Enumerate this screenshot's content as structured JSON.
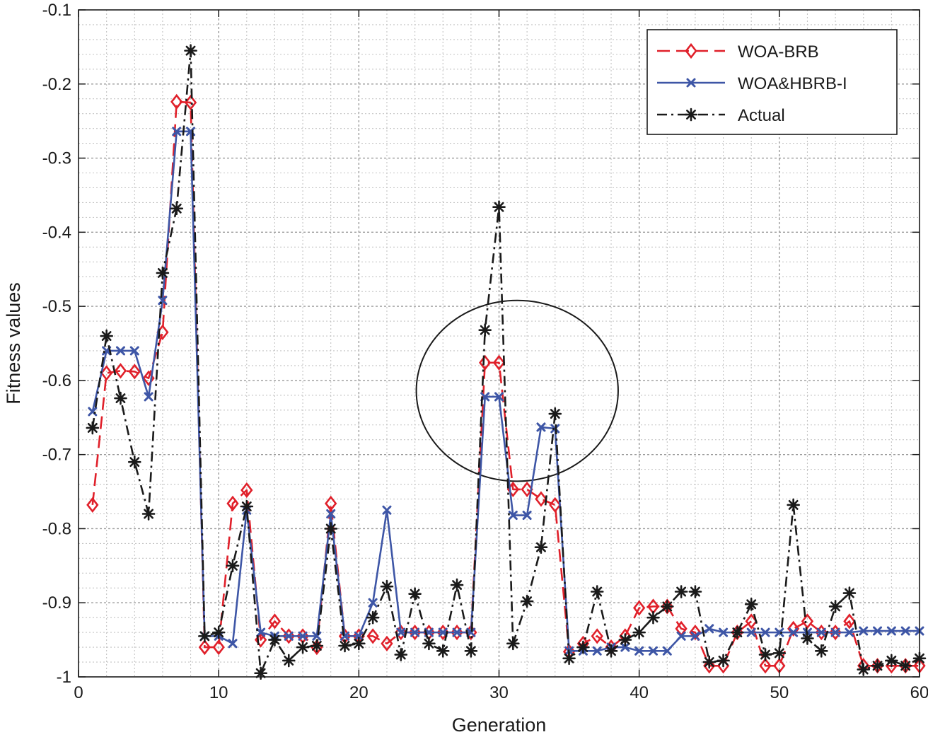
{
  "chart_data": {
    "type": "line",
    "title": "",
    "xlabel": "Generation",
    "ylabel": "Fitness values",
    "xlim": [
      0,
      60
    ],
    "ylim": [
      -1,
      -0.1
    ],
    "xticks": [
      0,
      10,
      20,
      30,
      40,
      50,
      60
    ],
    "xtick_labels": [
      "0",
      "10",
      "20",
      "30",
      "40",
      "50",
      "60"
    ],
    "yticks": [
      -1,
      -0.9,
      -0.8,
      -0.7,
      -0.6,
      -0.5,
      -0.4,
      -0.3,
      -0.2,
      -0.1
    ],
    "ytick_labels": [
      "-1",
      "-0.9",
      "-0.8",
      "-0.7",
      "-0.6",
      "-0.5",
      "-0.4",
      "-0.3",
      "-0.2",
      "-0.1"
    ],
    "grid": true,
    "minor_grid": true,
    "legend_position": "top-right",
    "x": [
      1,
      2,
      3,
      4,
      5,
      6,
      7,
      8,
      9,
      10,
      11,
      12,
      13,
      14,
      15,
      16,
      17,
      18,
      19,
      20,
      21,
      22,
      23,
      24,
      25,
      26,
      27,
      28,
      29,
      30,
      31,
      32,
      33,
      34,
      35,
      36,
      37,
      38,
      39,
      40,
      41,
      42,
      43,
      44,
      45,
      46,
      47,
      48,
      49,
      50,
      51,
      52,
      53,
      54,
      55,
      56,
      57,
      58,
      59,
      60
    ],
    "series": [
      {
        "name": "WOA-BRB",
        "color": "#e0202a",
        "line_style": "dashed",
        "marker": "diamond",
        "values": [
          -0.768,
          -0.59,
          -0.587,
          -0.588,
          -0.597,
          -0.535,
          -0.224,
          -0.225,
          -0.96,
          -0.96,
          -0.766,
          -0.748,
          -0.95,
          -0.925,
          -0.945,
          -0.945,
          -0.96,
          -0.766,
          -0.945,
          -0.945,
          -0.945,
          -0.955,
          -0.94,
          -0.94,
          -0.94,
          -0.94,
          -0.94,
          -0.94,
          -0.576,
          -0.576,
          -0.747,
          -0.747,
          -0.76,
          -0.768,
          -0.966,
          -0.955,
          -0.945,
          -0.96,
          -0.945,
          -0.907,
          -0.905,
          -0.905,
          -0.935,
          -0.94,
          -0.985,
          -0.985,
          -0.94,
          -0.925,
          -0.985,
          -0.985,
          -0.935,
          -0.925,
          -0.94,
          -0.94,
          -0.925,
          -0.985,
          -0.985,
          -0.985,
          -0.985,
          -0.985
        ]
      },
      {
        "name": "WOA&HBRB-I",
        "color": "#3e56a6",
        "line_style": "solid",
        "marker": "x",
        "values": [
          -0.642,
          -0.56,
          -0.56,
          -0.56,
          -0.622,
          -0.492,
          -0.264,
          -0.264,
          -0.945,
          -0.945,
          -0.955,
          -0.775,
          -0.94,
          -0.945,
          -0.945,
          -0.945,
          -0.945,
          -0.78,
          -0.945,
          -0.945,
          -0.9,
          -0.775,
          -0.94,
          -0.94,
          -0.94,
          -0.94,
          -0.94,
          -0.94,
          -0.622,
          -0.622,
          -0.782,
          -0.782,
          -0.663,
          -0.665,
          -0.965,
          -0.965,
          -0.965,
          -0.96,
          -0.96,
          -0.965,
          -0.965,
          -0.965,
          -0.945,
          -0.945,
          -0.935,
          -0.94,
          -0.94,
          -0.94,
          -0.94,
          -0.94,
          -0.94,
          -0.94,
          -0.94,
          -0.94,
          -0.94,
          -0.938,
          -0.938,
          -0.938,
          -0.938,
          -0.938
        ]
      },
      {
        "name": "Actual",
        "color": "#1a1a1a",
        "line_style": "dashdot",
        "marker": "asterisk",
        "values": [
          -0.664,
          -0.54,
          -0.624,
          -0.71,
          -0.78,
          -0.455,
          -0.368,
          -0.155,
          -0.945,
          -0.94,
          -0.85,
          -0.77,
          -0.995,
          -0.95,
          -0.978,
          -0.96,
          -0.958,
          -0.8,
          -0.958,
          -0.955,
          -0.92,
          -0.878,
          -0.97,
          -0.888,
          -0.955,
          -0.965,
          -0.876,
          -0.965,
          -0.532,
          -0.366,
          -0.955,
          -0.898,
          -0.825,
          -0.645,
          -0.975,
          -0.96,
          -0.885,
          -0.965,
          -0.95,
          -0.94,
          -0.92,
          -0.905,
          -0.885,
          -0.885,
          -0.98,
          -0.978,
          -0.94,
          -0.902,
          -0.97,
          -0.968,
          -0.768,
          -0.948,
          -0.965,
          -0.905,
          -0.887,
          -0.99,
          -0.985,
          -0.978,
          -0.985,
          -0.975
        ]
      }
    ],
    "annotations": [
      {
        "type": "ellipse",
        "description": "highlight around generations 29-34",
        "center_x": 31.3,
        "center_y": -0.614,
        "radius_x": 7.2,
        "radius_y": 0.122
      }
    ]
  }
}
